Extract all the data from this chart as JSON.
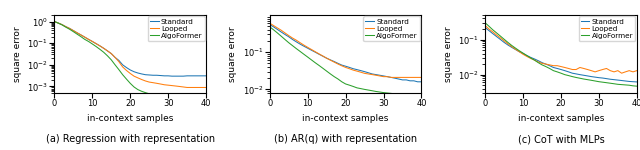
{
  "title_a": "(a) Regression with representation",
  "title_b": "(b) AR(q) with representation",
  "title_c": "(c) CoT with MLPs",
  "ylabel": "square error",
  "xlabel": "in-context samples",
  "legend_labels": [
    "Standard",
    "Looped",
    "AlgoFormer"
  ],
  "colors": [
    "#1f77b4",
    "#ff7f0e",
    "#2ca02c"
  ],
  "x_max": 40,
  "subplot_a": {
    "ylim": [
      0.0005,
      2.0
    ],
    "yticks": [
      0.001,
      0.01,
      0.1,
      1.0
    ],
    "standard": [
      1.0,
      0.85,
      0.72,
      0.58,
      0.48,
      0.38,
      0.3,
      0.24,
      0.19,
      0.15,
      0.12,
      0.095,
      0.075,
      0.058,
      0.044,
      0.033,
      0.022,
      0.016,
      0.01,
      0.0075,
      0.0058,
      0.0048,
      0.0042,
      0.0038,
      0.0035,
      0.0034,
      0.0033,
      0.0033,
      0.0032,
      0.0031,
      0.0031,
      0.003,
      0.003,
      0.003,
      0.003,
      0.0031,
      0.0031,
      0.0031,
      0.0031,
      0.0031,
      0.0031
    ],
    "looped": [
      1.0,
      0.85,
      0.72,
      0.58,
      0.48,
      0.38,
      0.3,
      0.24,
      0.19,
      0.15,
      0.12,
      0.095,
      0.075,
      0.058,
      0.044,
      0.033,
      0.022,
      0.014,
      0.008,
      0.0055,
      0.004,
      0.003,
      0.0025,
      0.0021,
      0.0018,
      0.0016,
      0.0015,
      0.0014,
      0.0013,
      0.0012,
      0.00115,
      0.0011,
      0.00105,
      0.001,
      0.00095,
      0.0009,
      0.0009,
      0.0009,
      0.0009,
      0.0009,
      0.0009
    ],
    "algoformer": [
      1.0,
      0.85,
      0.7,
      0.55,
      0.44,
      0.34,
      0.26,
      0.2,
      0.15,
      0.12,
      0.092,
      0.07,
      0.052,
      0.038,
      0.026,
      0.017,
      0.01,
      0.006,
      0.0035,
      0.0022,
      0.0014,
      0.00095,
      0.00072,
      0.0006,
      0.00052,
      0.00046,
      0.00042,
      0.0004,
      0.00038,
      0.00036,
      0.00034,
      0.00033,
      0.00032,
      0.00031,
      0.0003,
      0.00029,
      0.00028,
      0.00027,
      0.00027,
      0.00026,
      0.00025
    ]
  },
  "subplot_b": {
    "ylim": [
      0.008,
      1.0
    ],
    "yticks": [
      0.01,
      0.1
    ],
    "standard": [
      0.55,
      0.48,
      0.41,
      0.35,
      0.3,
      0.26,
      0.22,
      0.19,
      0.165,
      0.145,
      0.128,
      0.113,
      0.1,
      0.088,
      0.078,
      0.069,
      0.062,
      0.056,
      0.05,
      0.045,
      0.042,
      0.039,
      0.036,
      0.034,
      0.032,
      0.03,
      0.028,
      0.026,
      0.025,
      0.024,
      0.023,
      0.022,
      0.021,
      0.02,
      0.019,
      0.018,
      0.018,
      0.017,
      0.017,
      0.016,
      0.016
    ],
    "looped": [
      0.6,
      0.52,
      0.45,
      0.39,
      0.33,
      0.28,
      0.24,
      0.21,
      0.18,
      0.155,
      0.135,
      0.118,
      0.103,
      0.09,
      0.079,
      0.069,
      0.061,
      0.054,
      0.048,
      0.043,
      0.039,
      0.036,
      0.033,
      0.031,
      0.029,
      0.027,
      0.026,
      0.025,
      0.024,
      0.023,
      0.022,
      0.022,
      0.021,
      0.021,
      0.021,
      0.021,
      0.021,
      0.021,
      0.021,
      0.021,
      0.021
    ],
    "algoformer": [
      0.48,
      0.4,
      0.33,
      0.27,
      0.22,
      0.18,
      0.15,
      0.125,
      0.105,
      0.088,
      0.074,
      0.062,
      0.052,
      0.044,
      0.037,
      0.031,
      0.026,
      0.022,
      0.019,
      0.016,
      0.014,
      0.013,
      0.012,
      0.011,
      0.0105,
      0.01,
      0.0096,
      0.0092,
      0.0088,
      0.0085,
      0.0082,
      0.008,
      0.0078,
      0.0076,
      0.0074,
      0.0072,
      0.007,
      0.0069,
      0.0068,
      0.0067,
      0.0066
    ]
  },
  "subplot_c": {
    "ylim": [
      0.003,
      0.5
    ],
    "yticks": [
      0.01,
      0.1
    ],
    "standard": [
      0.22,
      0.18,
      0.148,
      0.122,
      0.101,
      0.083,
      0.07,
      0.06,
      0.052,
      0.045,
      0.04,
      0.035,
      0.031,
      0.028,
      0.025,
      0.022,
      0.02,
      0.018,
      0.016,
      0.015,
      0.014,
      0.013,
      0.012,
      0.011,
      0.0105,
      0.01,
      0.0096,
      0.0092,
      0.0088,
      0.0085,
      0.0082,
      0.008,
      0.0077,
      0.0074,
      0.0072,
      0.007,
      0.0068,
      0.0066,
      0.0064,
      0.0063,
      0.0062
    ],
    "looped": [
      0.25,
      0.2,
      0.165,
      0.135,
      0.112,
      0.092,
      0.076,
      0.063,
      0.053,
      0.045,
      0.038,
      0.033,
      0.029,
      0.026,
      0.023,
      0.021,
      0.02,
      0.019,
      0.018,
      0.018,
      0.017,
      0.016,
      0.015,
      0.014,
      0.014,
      0.016,
      0.015,
      0.014,
      0.013,
      0.012,
      0.013,
      0.014,
      0.015,
      0.013,
      0.012,
      0.013,
      0.011,
      0.012,
      0.013,
      0.012,
      0.013
    ],
    "algoformer": [
      0.3,
      0.24,
      0.19,
      0.155,
      0.126,
      0.102,
      0.083,
      0.068,
      0.057,
      0.048,
      0.041,
      0.035,
      0.03,
      0.026,
      0.022,
      0.019,
      0.017,
      0.015,
      0.013,
      0.012,
      0.011,
      0.01,
      0.0094,
      0.0088,
      0.0083,
      0.0079,
      0.0075,
      0.0072,
      0.0069,
      0.0066,
      0.0063,
      0.0061,
      0.0059,
      0.0057,
      0.0055,
      0.0053,
      0.0052,
      0.0051,
      0.005,
      0.0048,
      0.0047
    ]
  }
}
